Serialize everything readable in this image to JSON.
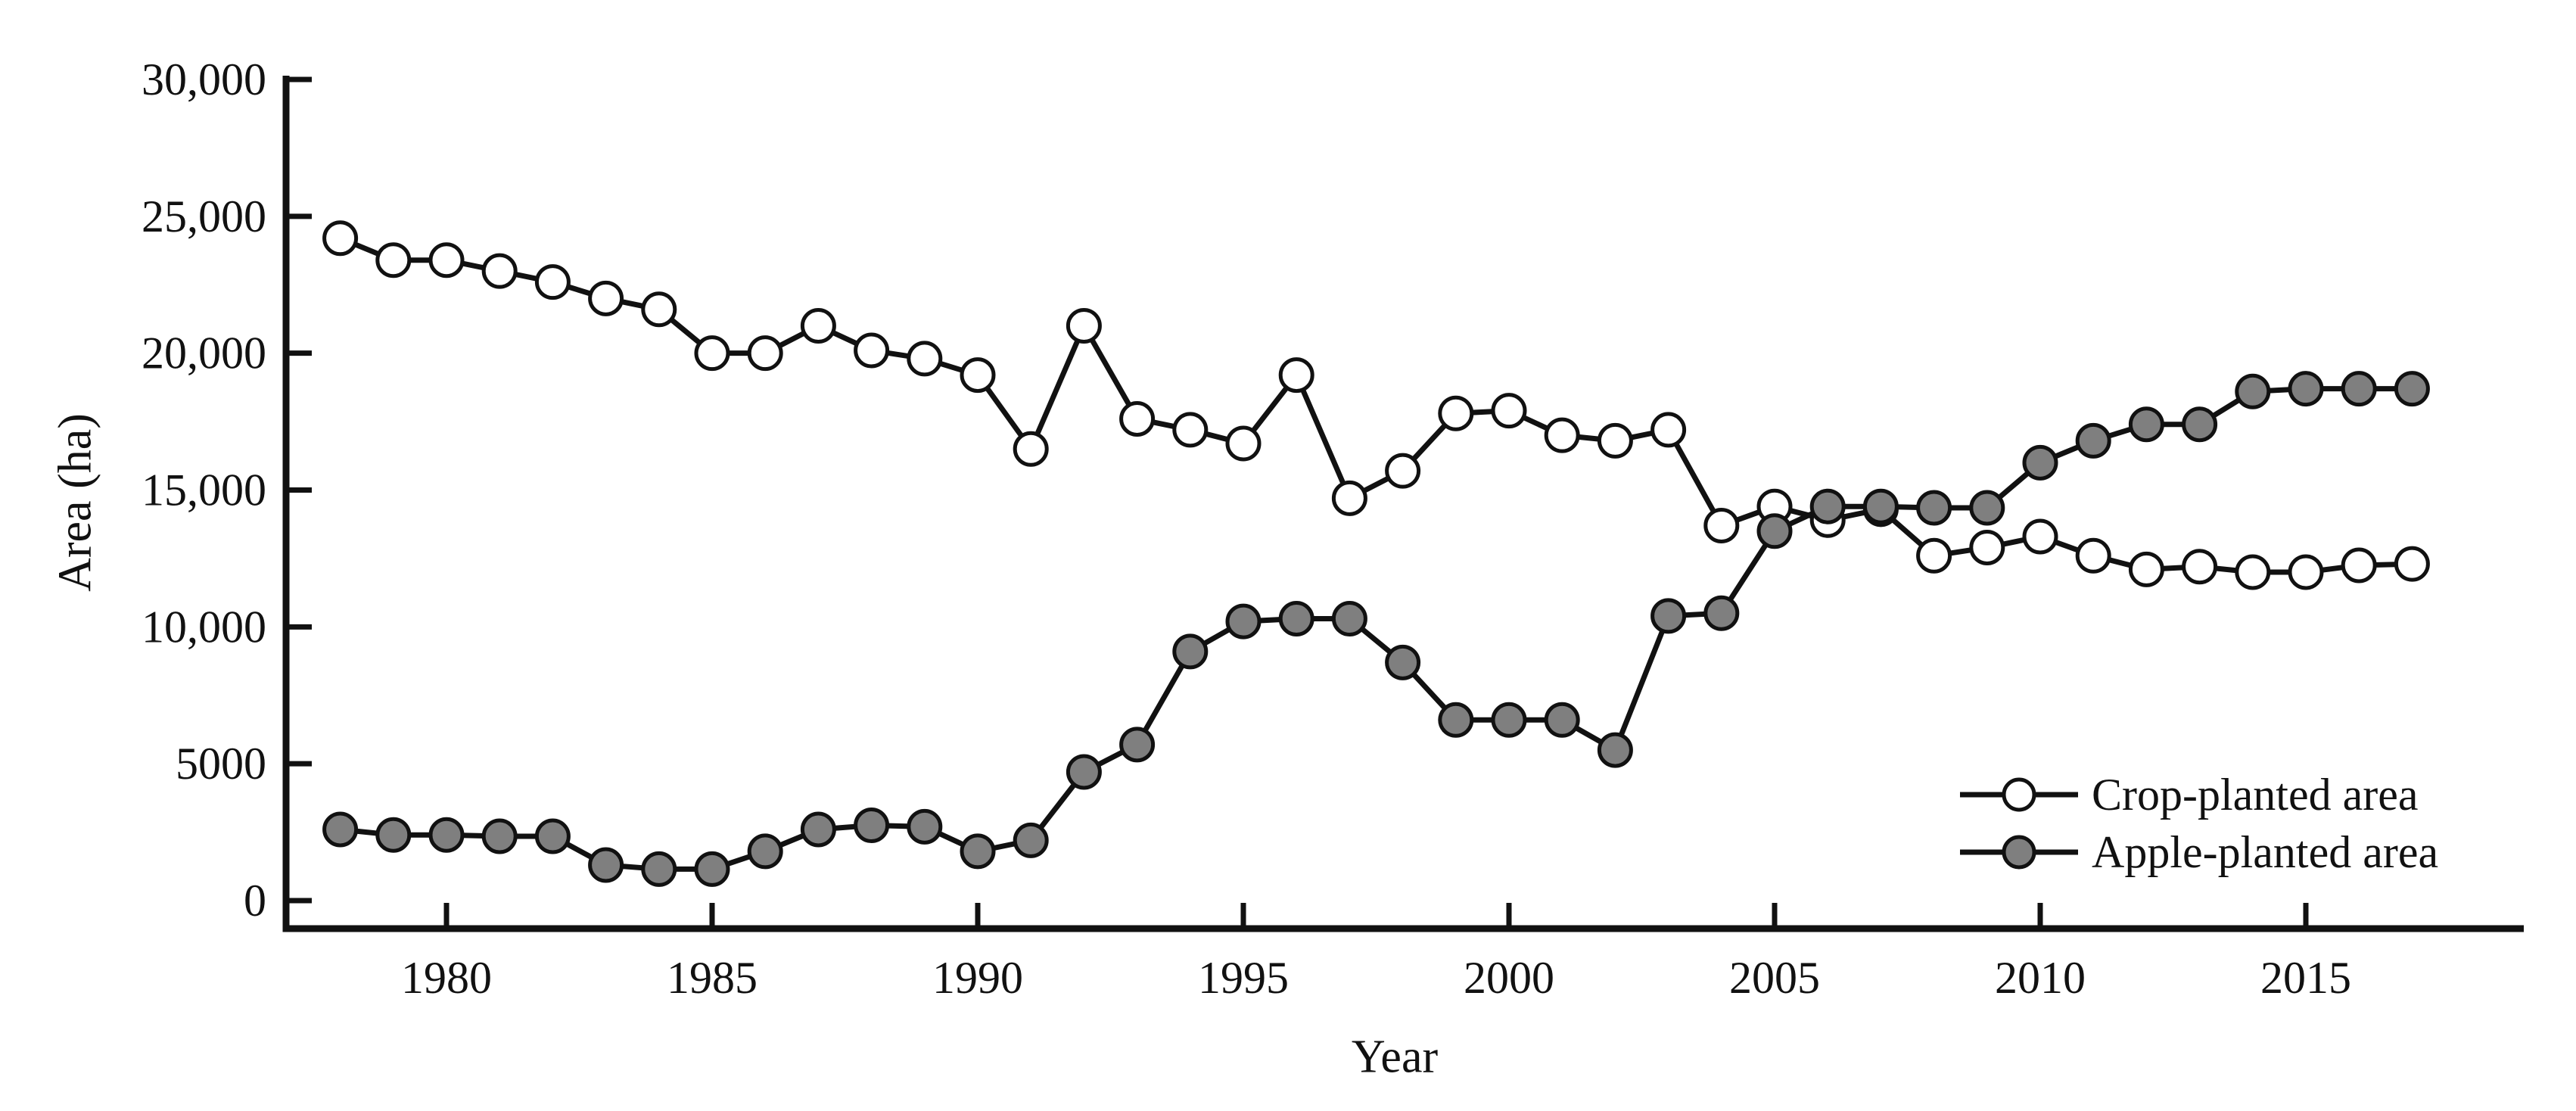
{
  "figure": {
    "y_axis_title": "Area (ha)",
    "x_axis_title": "Year"
  },
  "chart_data": {
    "type": "line",
    "title": "",
    "xlabel": "Year",
    "ylabel": "Area (ha)",
    "grid": false,
    "legend_position": "lower-right",
    "ylim": [
      0,
      30000
    ],
    "yticks": [
      0,
      5000,
      10000,
      15000,
      20000,
      25000,
      30000
    ],
    "ytick_labels": [
      "0",
      "5000",
      "10,000",
      "15,000",
      "20,000",
      "25,000",
      "30,000"
    ],
    "xticks": [
      1980,
      1985,
      1990,
      1995,
      2000,
      2005,
      2010,
      2015
    ],
    "x": [
      1978,
      1979,
      1980,
      1981,
      1982,
      1983,
      1984,
      1985,
      1986,
      1987,
      1988,
      1989,
      1990,
      1991,
      1992,
      1993,
      1994,
      1995,
      1996,
      1997,
      1998,
      1999,
      2000,
      2001,
      2002,
      2003,
      2004,
      2005,
      2006,
      2007,
      2008,
      2009,
      2010,
      2011,
      2012,
      2013,
      2014,
      2015,
      2016,
      2017
    ],
    "line_color": "#111111",
    "series": [
      {
        "name": "Crop-planted area",
        "marker": "circle",
        "marker_fill": "#ffffff",
        "values": [
          24200,
          23400,
          23400,
          23000,
          22600,
          22000,
          21600,
          20000,
          20000,
          21000,
          20100,
          19800,
          19200,
          16500,
          21000,
          17600,
          17200,
          16700,
          19200,
          14700,
          15700,
          17800,
          17900,
          17000,
          16800,
          17200,
          13700,
          14400,
          13900,
          14300,
          12600,
          12900,
          13300,
          12600,
          12100,
          12200,
          12000,
          12000,
          12250,
          12300
        ]
      },
      {
        "name": "Apple-planted area",
        "marker": "circle",
        "marker_fill": "#7f7f7f",
        "values": [
          2600,
          2400,
          2400,
          2350,
          2350,
          1300,
          1150,
          1150,
          1800,
          2600,
          2750,
          2700,
          1800,
          2200,
          4700,
          5700,
          9100,
          10200,
          10300,
          10300,
          8700,
          6600,
          6600,
          6600,
          5500,
          10400,
          10500,
          13500,
          14400,
          14400,
          14350,
          14350,
          16000,
          16800,
          17400,
          17400,
          18600,
          18700,
          18700,
          18700
        ]
      }
    ]
  }
}
